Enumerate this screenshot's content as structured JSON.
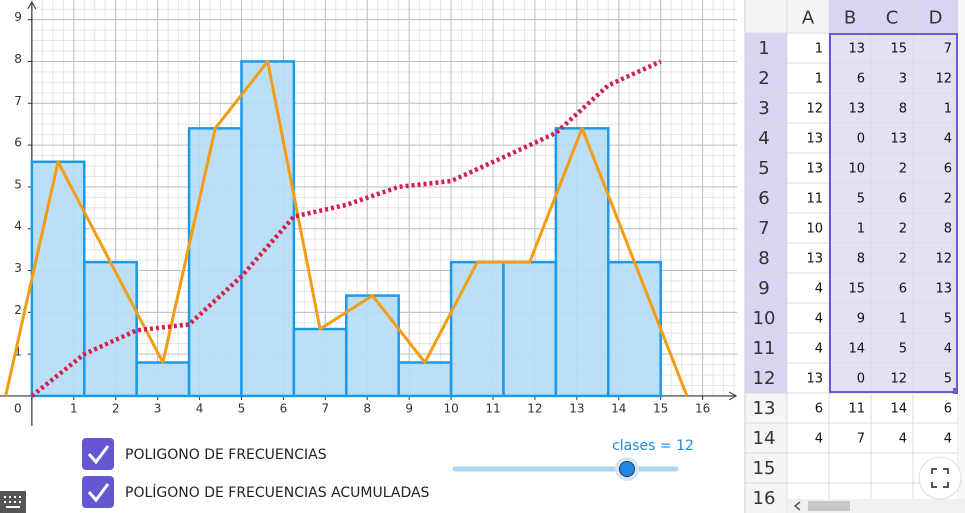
{
  "chart_data": {
    "type": "histogram",
    "bins": [
      0,
      1.25,
      2.5,
      3.75,
      5,
      6.25,
      7.5,
      8.75,
      10,
      11.25,
      12.5,
      13.75,
      15
    ],
    "values": [
      5.6,
      3.2,
      0.8,
      6.4,
      8,
      1.6,
      2.4,
      0.8,
      3.2,
      3.2,
      6.4,
      3.2
    ],
    "color": "#b5dcf7",
    "edge_color": "#1d9ae6",
    "xlim": [
      -0.76,
      16.82
    ],
    "ylim": [
      -2.8,
      9.47
    ],
    "xticks": [
      0,
      1,
      2,
      3,
      4,
      5,
      6,
      7,
      8,
      9,
      10,
      11,
      12,
      13,
      14,
      15,
      16
    ],
    "yticks": [
      1,
      2,
      3,
      4,
      5,
      6,
      7,
      8,
      9
    ],
    "grid": true,
    "series": [
      {
        "name": "POLIGONO DE FRECUENCIAS",
        "color": "#f59d12",
        "style": "solid",
        "x": [
          -0.625,
          0.625,
          1.875,
          3.125,
          4.375,
          5.625,
          6.875,
          8.125,
          9.375,
          10.625,
          11.875,
          13.125,
          14.375,
          15.625
        ],
        "values": [
          0,
          5.6,
          3.2,
          0.8,
          6.4,
          8,
          1.6,
          2.4,
          0.8,
          3.2,
          3.2,
          6.4,
          3.2,
          0
        ]
      },
      {
        "name": "POLÍGONO DE FRECUENCIAS ACUMULADAS",
        "color": "#d31f4b",
        "style": "dotted",
        "x": [
          0,
          1.25,
          2.5,
          3.75,
          5,
          6.25,
          7.5,
          8.75,
          10,
          11.25,
          12.5,
          13.75,
          15
        ],
        "values": [
          0,
          1,
          1.57,
          1.71,
          2.86,
          4.29,
          4.57,
          5,
          5.14,
          5.71,
          6.29,
          7.43,
          8
        ]
      }
    ]
  },
  "slider": {
    "label": "clases = 12"
  },
  "spreadsheet": {
    "columns": [
      "A",
      "B",
      "C",
      "D"
    ],
    "row_headers": [
      1,
      2,
      3,
      4,
      5,
      6,
      7,
      8,
      9,
      10,
      11,
      12,
      13,
      14,
      15,
      16
    ],
    "rows": [
      [
        1,
        13,
        15,
        7
      ],
      [
        1,
        6,
        3,
        12
      ],
      [
        12,
        13,
        8,
        1
      ],
      [
        13,
        0,
        13,
        4
      ],
      [
        13,
        10,
        2,
        6
      ],
      [
        11,
        5,
        6,
        2
      ],
      [
        10,
        1,
        2,
        8
      ],
      [
        13,
        8,
        2,
        12
      ],
      [
        4,
        15,
        6,
        13
      ],
      [
        4,
        9,
        1,
        5
      ],
      [
        4,
        14,
        5,
        4
      ],
      [
        13,
        0,
        12,
        5
      ],
      [
        6,
        11,
        14,
        6
      ],
      [
        4,
        7,
        4,
        4
      ]
    ]
  }
}
